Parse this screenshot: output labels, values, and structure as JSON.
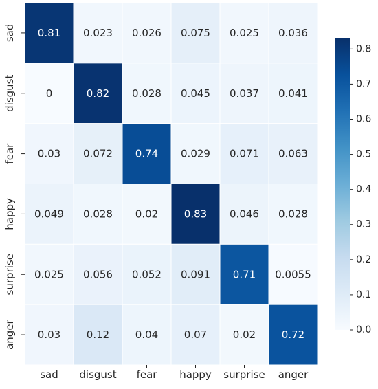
{
  "chart_data": {
    "type": "heatmap",
    "title": "",
    "xlabel": "",
    "ylabel": "",
    "x_categories": [
      "sad",
      "disgust",
      "fear",
      "happy",
      "surprise",
      "anger"
    ],
    "y_categories": [
      "sad",
      "disgust",
      "fear",
      "happy",
      "surprise",
      "anger"
    ],
    "values": [
      [
        0.81,
        0.023,
        0.026,
        0.075,
        0.025,
        0.036
      ],
      [
        0,
        0.82,
        0.028,
        0.045,
        0.037,
        0.041
      ],
      [
        0.03,
        0.072,
        0.74,
        0.029,
        0.071,
        0.063
      ],
      [
        0.049,
        0.028,
        0.02,
        0.83,
        0.046,
        0.028
      ],
      [
        0.025,
        0.056,
        0.052,
        0.091,
        0.71,
        0.0055
      ],
      [
        0.03,
        0.12,
        0.04,
        0.07,
        0.02,
        0.72
      ]
    ],
    "value_labels": [
      [
        "0.81",
        "0.023",
        "0.026",
        "0.075",
        "0.025",
        "0.036"
      ],
      [
        "0",
        "0.82",
        "0.028",
        "0.045",
        "0.037",
        "0.041"
      ],
      [
        "0.03",
        "0.072",
        "0.74",
        "0.029",
        "0.071",
        "0.063"
      ],
      [
        "0.049",
        "0.028",
        "0.02",
        "0.83",
        "0.046",
        "0.028"
      ],
      [
        "0.025",
        "0.056",
        "0.052",
        "0.091",
        "0.71",
        "0.0055"
      ],
      [
        "0.03",
        "0.12",
        "0.04",
        "0.07",
        "0.02",
        "0.72"
      ]
    ],
    "colormap": "Blues",
    "color_range": [
      0,
      0.83
    ],
    "grid_lines": true,
    "colorbar": {
      "position": "right",
      "ticks": [
        0.0,
        0.1,
        0.2,
        0.3,
        0.4,
        0.5,
        0.6,
        0.7,
        0.8
      ],
      "tick_labels": [
        "0.0",
        "0.1",
        "0.2",
        "0.3",
        "0.4",
        "0.5",
        "0.6",
        "0.7",
        "0.8"
      ]
    }
  }
}
